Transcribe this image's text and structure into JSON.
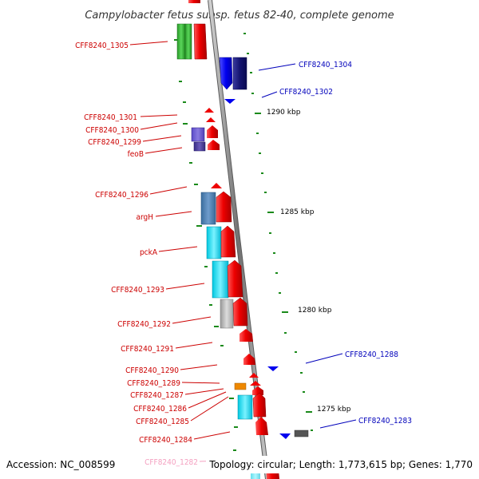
{
  "title": "Campylobacter fetus subsp. fetus 82-40, complete genome",
  "footer": {
    "accession": "Accession: NC_008599",
    "topology": "Topology: circular; Length: 1,773,615 bp; Genes: 1,770"
  },
  "scale_labels": [
    "1290 kbp",
    "1285 kbp",
    "1280 kbp",
    "1275 kbp"
  ],
  "left_labels": [
    "CFF8240_1305",
    "CFF8240_1301",
    "CFF8240_1300",
    "CFF8240_1299",
    "feoB",
    "CFF8240_1296",
    "argH",
    "pckA",
    "CFF8240_1293",
    "CFF8240_1292",
    "CFF8240_1291",
    "CFF8240_1290",
    "CFF8240_1289",
    "CFF8240_1287",
    "CFF8240_1286",
    "CFF8240_1285",
    "CFF8240_1284",
    "CFF8240_1282"
  ],
  "right_labels": [
    "CFF8240_1304",
    "CFF8240_1302",
    "CFF8240_1288",
    "CFF8240_1283"
  ],
  "colors": {
    "left_label": "#cc0000",
    "right_label": "#0000bb",
    "faded_label": "#f4a0c0",
    "backbone": "#888888",
    "tick": "#1a8a1a",
    "forward_gene": "#ee0000",
    "reverse_gene": "#0000ee"
  }
}
